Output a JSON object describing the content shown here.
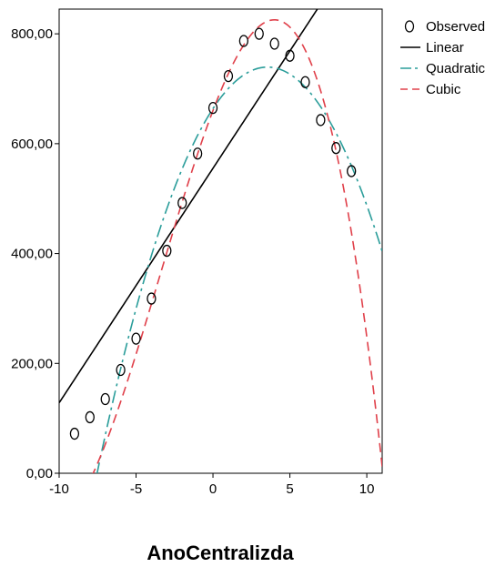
{
  "chart_data": {
    "type": "scatter",
    "title": "",
    "xlabel": "AnoCentralizda",
    "ylabel": "",
    "xlim": [
      -10,
      11
    ],
    "ylim": [
      0,
      845
    ],
    "x_ticks": [
      -10,
      -5,
      0,
      5,
      10
    ],
    "x_tick_labels": [
      "-10",
      "-5",
      "0",
      "5",
      "10"
    ],
    "y_ticks": [
      0,
      200,
      400,
      600,
      800
    ],
    "y_tick_labels": [
      "0,00",
      "200,00",
      "400,00",
      "600,00",
      "800,00"
    ],
    "grid": false,
    "legend_position": "right",
    "series": [
      {
        "name": "Observed",
        "kind": "points",
        "color": "#000000",
        "x": [
          -9,
          -8,
          -7,
          -6,
          -5,
          -4,
          -3,
          -2,
          -1,
          0,
          1,
          2,
          3,
          4,
          5,
          6,
          7,
          8,
          9
        ],
        "y": [
          72,
          102,
          135,
          188,
          245,
          318,
          405,
          492,
          582,
          665,
          723,
          787,
          800,
          782,
          760,
          712,
          643,
          592,
          550
        ]
      },
      {
        "name": "Linear",
        "kind": "line",
        "color": "#000000",
        "dash": "solid",
        "equation": "y = 555.2 + 42.7x",
        "coefficients": [
          555.2,
          42.7
        ],
        "x_range": [
          -10,
          11
        ]
      },
      {
        "name": "Quadratic",
        "kind": "line",
        "color": "#2a9d9a",
        "dash": "dashdot",
        "equation": "y = 663.8 + 42.7x - 6.03x^2",
        "coefficients": [
          663.8,
          42.7,
          -6.03
        ],
        "x_range": [
          -8.5,
          11
        ]
      },
      {
        "name": "Cubic",
        "kind": "line",
        "color": "#e0404a",
        "dash": "dashed",
        "equation": "y = 660.2 + 73.7x - 5.83x^2 - 0.566x^3",
        "coefficients": [
          660.2,
          73.7,
          -5.83,
          -0.566
        ],
        "x_range": [
          -10,
          11
        ]
      }
    ]
  }
}
